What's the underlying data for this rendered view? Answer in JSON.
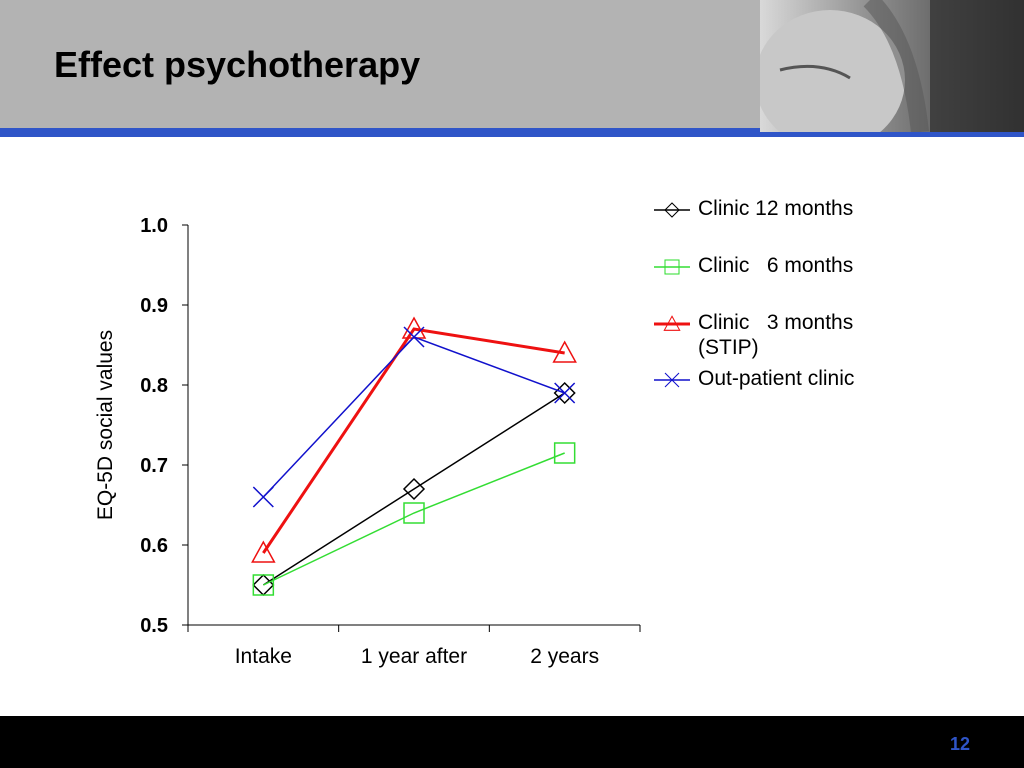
{
  "slide": {
    "title": "Effect psychotherapy",
    "page_number": "12"
  },
  "colors": {
    "header_gray": "#b3b3b3",
    "accent_blue": "#2f55c8",
    "footer": "#000000"
  },
  "chart_data": {
    "type": "line",
    "title": "",
    "xlabel": "",
    "ylabel": "EQ-5D social values",
    "categories": [
      "Intake",
      "1 year after",
      "2 years"
    ],
    "ylim": [
      0.5,
      1.0
    ],
    "yticks": [
      "0.5",
      "0.6",
      "0.7",
      "0.8",
      "0.9",
      "1.0"
    ],
    "grid": false,
    "legend_position": "top-right",
    "series": [
      {
        "name": "Clinic 12 months",
        "color": "#000000",
        "marker": "diamond",
        "values": [
          0.55,
          0.67,
          0.79
        ]
      },
      {
        "name": "Clinic   6 months",
        "color": "#33dd33",
        "marker": "square",
        "values": [
          0.55,
          0.64,
          0.715
        ]
      },
      {
        "name": "Clinic   3 months\n(STIP)",
        "color": "#ee1111",
        "marker": "triangle",
        "values": [
          0.59,
          0.87,
          0.84
        ]
      },
      {
        "name": "Out-patient clinic",
        "color": "#1111cc",
        "marker": "x",
        "values": [
          0.66,
          0.86,
          0.79
        ]
      }
    ]
  }
}
